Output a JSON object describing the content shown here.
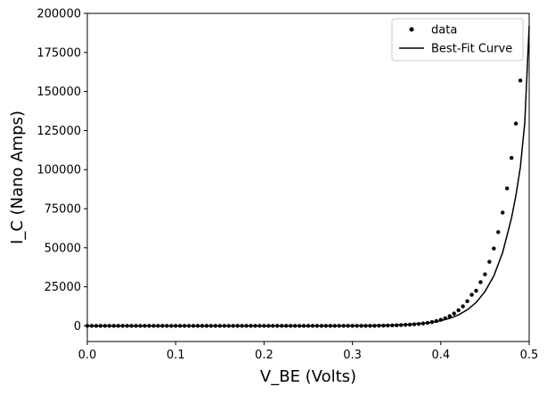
{
  "chart_data": {
    "type": "scatter",
    "xlabel": "V_BE (Volts)",
    "ylabel": "I_C (Nano Amps)",
    "xlim": [
      0,
      0.5
    ],
    "ylim": [
      -10000,
      200000
    ],
    "x_ticks": [
      "0.0",
      "0.1",
      "0.2",
      "0.3",
      "0.4",
      "0.5"
    ],
    "x_tick_values": [
      0,
      0.1,
      0.2,
      0.3,
      0.4,
      0.5
    ],
    "y_ticks": [
      "0",
      "25000",
      "50000",
      "75000",
      "100000",
      "125000",
      "150000",
      "175000",
      "200000"
    ],
    "y_tick_values": [
      0,
      25000,
      50000,
      75000,
      100000,
      125000,
      150000,
      175000,
      200000
    ],
    "grid": false,
    "legend_position": "top-right",
    "legend": [
      {
        "label": "data",
        "marker": "dot"
      },
      {
        "label": "Best-Fit Curve",
        "marker": "line"
      }
    ],
    "series": [
      {
        "name": "data",
        "style": "scatter",
        "color": "#000000",
        "x": [
          0.0,
          0.005,
          0.01,
          0.015,
          0.02,
          0.025,
          0.03,
          0.035,
          0.04,
          0.045,
          0.05,
          0.055,
          0.06,
          0.065,
          0.07,
          0.075,
          0.08,
          0.085,
          0.09,
          0.095,
          0.1,
          0.105,
          0.11,
          0.115,
          0.12,
          0.125,
          0.13,
          0.135,
          0.14,
          0.145,
          0.15,
          0.155,
          0.16,
          0.165,
          0.17,
          0.175,
          0.18,
          0.185,
          0.19,
          0.195,
          0.2,
          0.205,
          0.21,
          0.215,
          0.22,
          0.225,
          0.23,
          0.235,
          0.24,
          0.245,
          0.25,
          0.255,
          0.26,
          0.265,
          0.27,
          0.275,
          0.28,
          0.285,
          0.29,
          0.295,
          0.3,
          0.305,
          0.31,
          0.315,
          0.32,
          0.325,
          0.33,
          0.335,
          0.34,
          0.345,
          0.35,
          0.355,
          0.36,
          0.365,
          0.37,
          0.375,
          0.38,
          0.385,
          0.39,
          0.395,
          0.4,
          0.405,
          0.41,
          0.415,
          0.42,
          0.425,
          0.43,
          0.435,
          0.44,
          0.445,
          0.45,
          0.455,
          0.46,
          0.465,
          0.47,
          0.475,
          0.48,
          0.485,
          0.49
        ],
        "y": [
          0,
          0,
          0,
          0,
          0,
          0,
          0,
          0,
          0,
          0,
          0,
          0,
          0,
          0,
          0,
          0,
          0,
          0,
          0,
          0,
          0,
          0,
          0,
          0,
          0,
          0,
          0,
          0,
          0,
          0,
          0,
          0,
          0,
          0,
          0,
          0,
          0,
          0,
          0,
          0,
          0,
          0,
          0,
          0,
          0,
          0,
          0,
          0,
          0,
          0,
          0,
          0,
          0,
          0,
          0,
          0,
          0,
          0,
          0,
          0,
          0,
          0,
          0,
          0,
          0,
          0,
          100,
          150,
          200,
          300,
          400,
          500,
          650,
          800,
          1000,
          1250,
          1550,
          1950,
          2450,
          3100,
          3900,
          4900,
          6200,
          7900,
          10000,
          12500,
          15800,
          19900,
          22500,
          28000,
          33000,
          41000,
          49500,
          60000,
          72500,
          88000,
          107500,
          129500,
          157000
        ]
      },
      {
        "name": "Best-Fit Curve",
        "style": "line",
        "color": "#000000",
        "x": [
          0.0,
          0.05,
          0.1,
          0.15,
          0.2,
          0.25,
          0.3,
          0.32,
          0.34,
          0.36,
          0.38,
          0.39,
          0.4,
          0.41,
          0.42,
          0.43,
          0.44,
          0.45,
          0.46,
          0.47,
          0.48,
          0.485,
          0.49,
          0.495,
          0.5
        ],
        "y": [
          0,
          0,
          0,
          0,
          0,
          0,
          100,
          200,
          400,
          800,
          1600,
          2300,
          3300,
          4800,
          7000,
          10300,
          15000,
          22000,
          32000,
          47000,
          69000,
          83500,
          101500,
          130000,
          192000
        ]
      }
    ]
  }
}
